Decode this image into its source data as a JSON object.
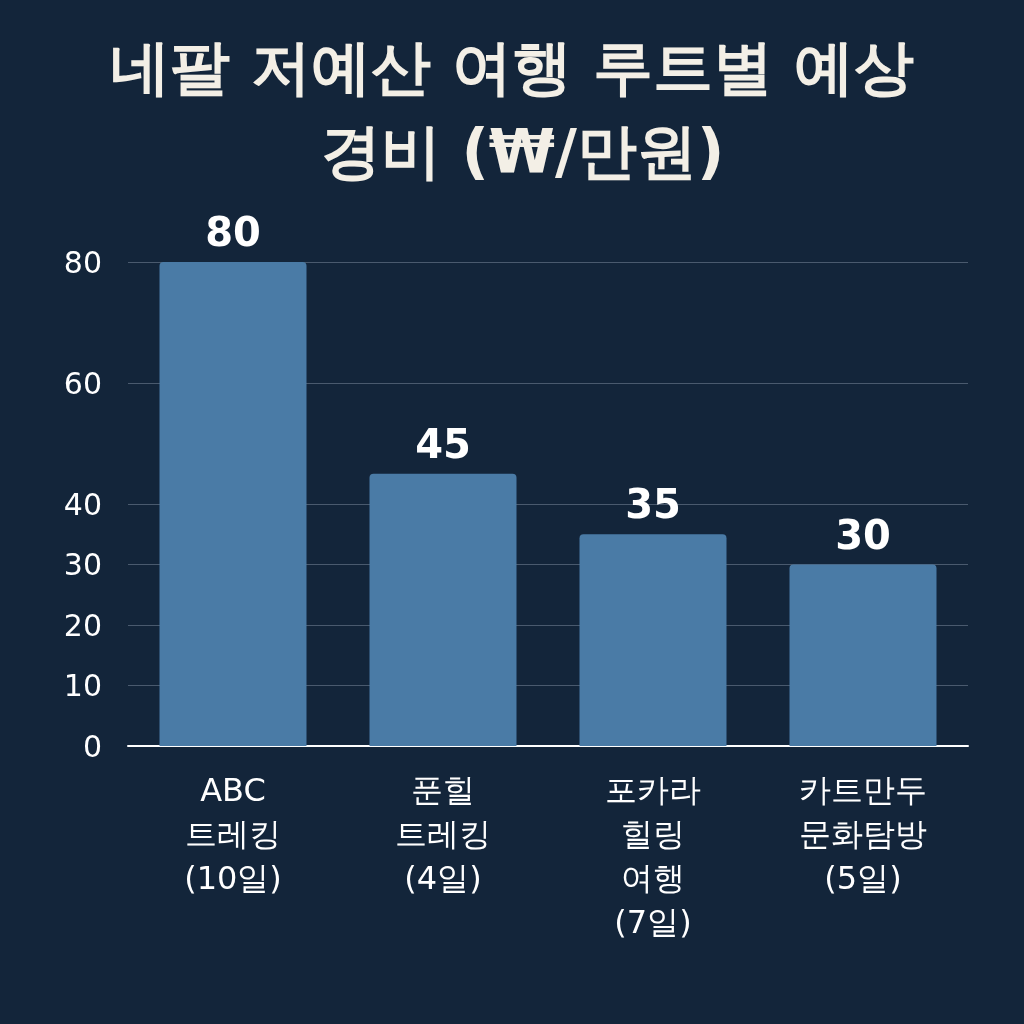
{
  "chart_data": {
    "type": "bar",
    "title": "네팔 저예산 여행 루트별 예상 경비 (₩/만원)",
    "categories": [
      "ABC 트레킹 (10일)",
      "푼힐 트레킹 (4일)",
      "포카라 힐링 여행 (7일)",
      "카트만두 문화탐방 (5일)"
    ],
    "values": [
      80,
      45,
      35,
      30
    ],
    "color": "#4a7ba6",
    "ylim": [
      0,
      80
    ],
    "yticks": [
      0,
      10,
      20,
      30,
      40,
      60,
      80
    ],
    "grid": "y",
    "data_labels": true
  }
}
